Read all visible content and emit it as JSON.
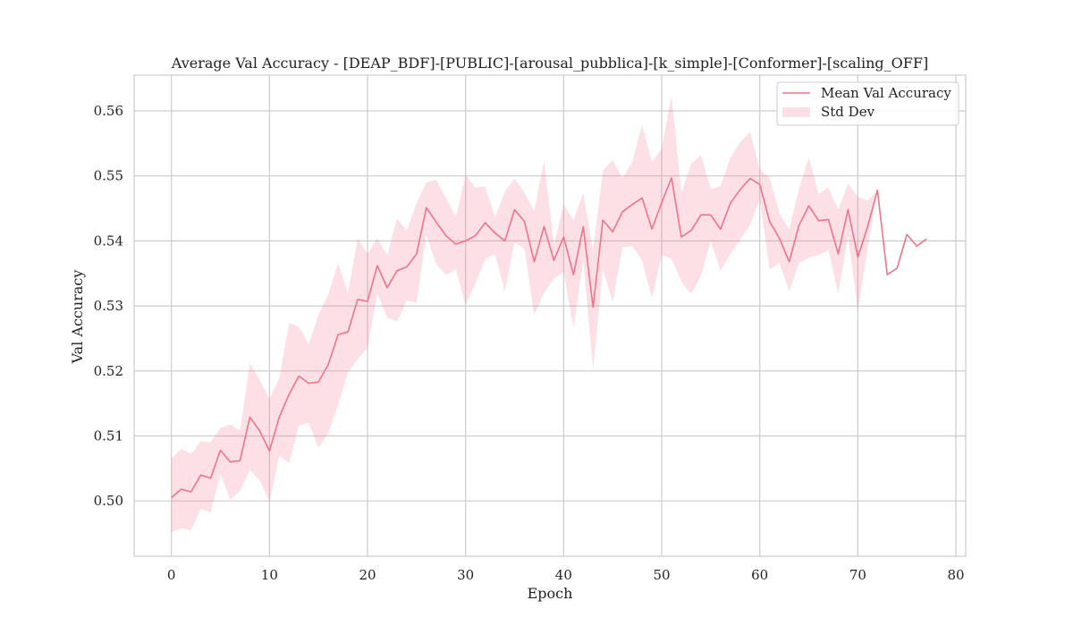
{
  "chart_data": {
    "type": "line",
    "title": "Average Val Accuracy - [DEAP_BDF]-[PUBLIC]-[arousal_pubblica]-[k_simple]-[Conformer]-[scaling_OFF]",
    "xlabel": "Epoch",
    "ylabel": "Val Accuracy",
    "xlim": [
      -3.8,
      81.0
    ],
    "ylim": [
      0.4915,
      0.5655
    ],
    "xticks": [
      0,
      10,
      20,
      30,
      40,
      50,
      60,
      70,
      80
    ],
    "yticks": [
      0.5,
      0.51,
      0.52,
      0.53,
      0.54,
      0.55,
      0.56
    ],
    "xtick_labels": [
      "0",
      "10",
      "20",
      "30",
      "40",
      "50",
      "60",
      "70",
      "80"
    ],
    "ytick_labels": [
      "0.50",
      "0.51",
      "0.52",
      "0.53",
      "0.54",
      "0.55",
      "0.56"
    ],
    "grid": true,
    "legend_position": "top-right",
    "series": [
      {
        "name": "Mean Val Accuracy",
        "color": "#f0738a",
        "x": [
          0,
          1,
          2,
          3,
          4,
          5,
          6,
          7,
          8,
          9,
          10,
          11,
          12,
          13,
          14,
          15,
          16,
          17,
          18,
          19,
          20,
          21,
          22,
          23,
          24,
          25,
          26,
          27,
          28,
          29,
          30,
          31,
          32,
          33,
          34,
          35,
          36,
          37,
          38,
          39,
          40,
          41,
          42,
          43,
          44,
          45,
          46,
          47,
          48,
          49,
          50,
          51,
          52,
          53,
          54,
          55,
          56,
          57,
          58,
          59,
          60,
          61,
          62,
          63,
          64,
          65,
          66,
          67,
          68,
          69,
          70,
          71,
          72,
          73,
          74,
          75,
          76,
          77
        ],
        "values": [
          0.5005,
          0.5018,
          0.5014,
          0.504,
          0.5035,
          0.5078,
          0.506,
          0.5062,
          0.5129,
          0.5108,
          0.5077,
          0.5129,
          0.5164,
          0.5192,
          0.5181,
          0.5183,
          0.521,
          0.5256,
          0.526,
          0.531,
          0.5307,
          0.5362,
          0.5328,
          0.5354,
          0.536,
          0.538,
          0.5451,
          0.5429,
          0.5408,
          0.5395,
          0.54,
          0.5408,
          0.5428,
          0.5412,
          0.54,
          0.5448,
          0.543,
          0.5368,
          0.5422,
          0.537,
          0.5406,
          0.5348,
          0.5422,
          0.5298,
          0.5432,
          0.5414,
          0.5445,
          0.5456,
          0.5466,
          0.5418,
          0.5459,
          0.5497,
          0.5406,
          0.5416,
          0.544,
          0.544,
          0.5418,
          0.5458,
          0.5479,
          0.5496,
          0.5487,
          0.543,
          0.5404,
          0.5368,
          0.5424,
          0.5454,
          0.5431,
          0.5433,
          0.538,
          0.5448,
          0.5375,
          0.5422,
          0.5478,
          0.5348,
          0.5358,
          0.541,
          0.5392,
          0.5403
        ]
      },
      {
        "name": "Std Dev",
        "color": "#f0738a",
        "opacity": 0.22,
        "x": [
          0,
          1,
          2,
          3,
          4,
          5,
          6,
          7,
          8,
          9,
          10,
          11,
          12,
          13,
          14,
          15,
          16,
          17,
          18,
          19,
          20,
          21,
          22,
          23,
          24,
          25,
          26,
          27,
          28,
          29,
          30,
          31,
          32,
          33,
          34,
          35,
          36,
          37,
          38,
          39,
          40,
          41,
          42,
          43,
          44,
          45,
          46,
          47,
          48,
          49,
          50,
          51,
          52,
          53,
          54,
          55,
          56,
          57,
          58,
          59,
          60,
          61,
          62,
          63,
          64,
          65,
          66,
          67,
          68,
          69,
          70,
          71,
          72
        ],
        "upper": [
          0.5065,
          0.508,
          0.5072,
          0.5092,
          0.509,
          0.5112,
          0.5118,
          0.5108,
          0.5212,
          0.5186,
          0.5158,
          0.5188,
          0.5274,
          0.5268,
          0.5242,
          0.5286,
          0.5318,
          0.5366,
          0.532,
          0.5404,
          0.538,
          0.5404,
          0.5378,
          0.5434,
          0.5416,
          0.5458,
          0.549,
          0.5494,
          0.5466,
          0.5436,
          0.5502,
          0.5482,
          0.5484,
          0.5436,
          0.5476,
          0.5496,
          0.5474,
          0.5446,
          0.5524,
          0.5394,
          0.5456,
          0.5432,
          0.5474,
          0.5386,
          0.5508,
          0.5524,
          0.5496,
          0.5522,
          0.5578,
          0.5522,
          0.5542,
          0.5624,
          0.5474,
          0.5518,
          0.5532,
          0.548,
          0.5484,
          0.5528,
          0.5552,
          0.5568,
          0.551,
          0.5498,
          0.5442,
          0.5418,
          0.548,
          0.5528,
          0.5472,
          0.5482,
          0.5448,
          0.5488,
          0.5468,
          0.5462,
          0.5478
        ],
        "lower": [
          0.4952,
          0.4958,
          0.4955,
          0.4988,
          0.4982,
          0.5042,
          0.5002,
          0.5015,
          0.5048,
          0.5032,
          0.4998,
          0.507,
          0.5058,
          0.5116,
          0.512,
          0.5082,
          0.5104,
          0.5148,
          0.5198,
          0.5218,
          0.5236,
          0.532,
          0.5282,
          0.5276,
          0.5308,
          0.5305,
          0.541,
          0.5364,
          0.5348,
          0.5356,
          0.5302,
          0.5334,
          0.5372,
          0.538,
          0.5322,
          0.5398,
          0.5388,
          0.5286,
          0.532,
          0.5342,
          0.5352,
          0.5266,
          0.537,
          0.5202,
          0.5356,
          0.5306,
          0.539,
          0.5392,
          0.537,
          0.5312,
          0.5378,
          0.5372,
          0.5338,
          0.5318,
          0.5346,
          0.54,
          0.5354,
          0.538,
          0.5402,
          0.5424,
          0.5464,
          0.5356,
          0.5366,
          0.5322,
          0.5366,
          0.5374,
          0.5378,
          0.5386,
          0.5318,
          0.5408,
          0.5292,
          0.539,
          0.5478
        ]
      }
    ]
  }
}
